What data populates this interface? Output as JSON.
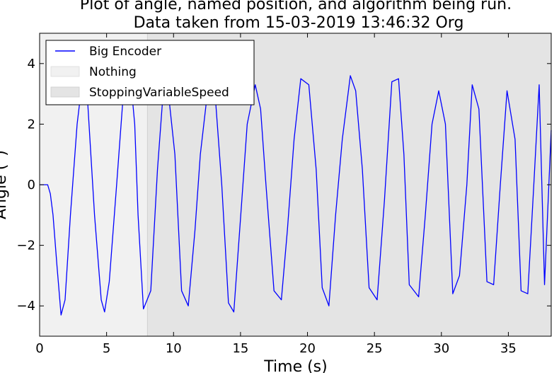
{
  "chart_data": {
    "type": "line",
    "title_line1": "Plot of angle, named position, and algorithm being run.",
    "title_line2": "Data taken from 15-03-2019 13:46:32 Org",
    "xlabel": "Time (s)",
    "ylabel": "Angle (°)",
    "xlim": [
      0,
      38.2
    ],
    "ylim": [
      -5,
      5
    ],
    "xticks": [
      0,
      5,
      10,
      15,
      20,
      25,
      30,
      35
    ],
    "yticks": [
      -4,
      -2,
      0,
      2,
      4
    ],
    "xtick_labels": [
      "0",
      "5",
      "10",
      "15",
      "20",
      "25",
      "30",
      "35"
    ],
    "ytick_labels": [
      "−4",
      "−2",
      "0",
      "2",
      "4"
    ],
    "grid": false,
    "legend_position": "top-left",
    "regions": [
      {
        "name": "Nothing",
        "x_start": 0,
        "x_end": 8.05,
        "color": "#f1f1f1"
      },
      {
        "name": "StoppingVariableSpeed",
        "x_start": 8.05,
        "x_end": 38.2,
        "color": "#e4e4e4"
      }
    ],
    "series": [
      {
        "name": "Big Encoder",
        "color": "#0000ff",
        "x": [
          0,
          0.6,
          0.8,
          1.0,
          1.3,
          1.6,
          1.9,
          2.3,
          2.8,
          3.2,
          3.55,
          4.1,
          4.6,
          4.85,
          5.2,
          5.75,
          6.3,
          6.75,
          7.1,
          7.35,
          7.75,
          8.3,
          8.8,
          9.2,
          9.55,
          10.1,
          10.6,
          11.1,
          11.6,
          12.0,
          12.65,
          13.1,
          13.6,
          14.1,
          14.5,
          15.1,
          15.5,
          16.1,
          16.5,
          16.9,
          17.5,
          18.05,
          18.5,
          19.0,
          19.5,
          20.1,
          20.65,
          21.1,
          21.6,
          22.1,
          22.6,
          23.2,
          23.6,
          24.1,
          24.6,
          25.2,
          25.75,
          26.3,
          26.8,
          27.2,
          27.6,
          28.3,
          28.8,
          29.3,
          29.8,
          30.3,
          30.85,
          31.35,
          31.9,
          32.3,
          32.8,
          33.4,
          33.9,
          34.4,
          34.9,
          35.5,
          35.95,
          36.45,
          36.9,
          37.3,
          37.7,
          38.2
        ],
        "y": [
          0,
          0,
          -0.3,
          -1.0,
          -2.7,
          -4.3,
          -3.8,
          -1.0,
          2.0,
          3.5,
          3.0,
          -1.0,
          -3.8,
          -4.2,
          -3.2,
          0.0,
          3.3,
          3.7,
          2.0,
          -1.0,
          -4.1,
          -3.5,
          0.5,
          2.9,
          3.3,
          1.0,
          -3.5,
          -4.0,
          -1.5,
          1.0,
          3.5,
          3.0,
          0.0,
          -3.9,
          -4.2,
          -0.5,
          2.0,
          3.3,
          2.5,
          0.0,
          -3.5,
          -3.8,
          -1.5,
          1.5,
          3.5,
          3.3,
          0.5,
          -3.4,
          -4.0,
          -1.0,
          1.5,
          3.6,
          3.1,
          0.5,
          -3.4,
          -3.8,
          -0.5,
          3.4,
          3.5,
          1.0,
          -3.3,
          -3.7,
          -1.0,
          2.0,
          3.1,
          2.0,
          -3.6,
          -3.0,
          0.0,
          3.3,
          2.5,
          -3.2,
          -3.3,
          0.0,
          3.1,
          1.5,
          -3.5,
          -3.6,
          0.0,
          3.3,
          -3.3,
          1.8
        ]
      }
    ]
  }
}
